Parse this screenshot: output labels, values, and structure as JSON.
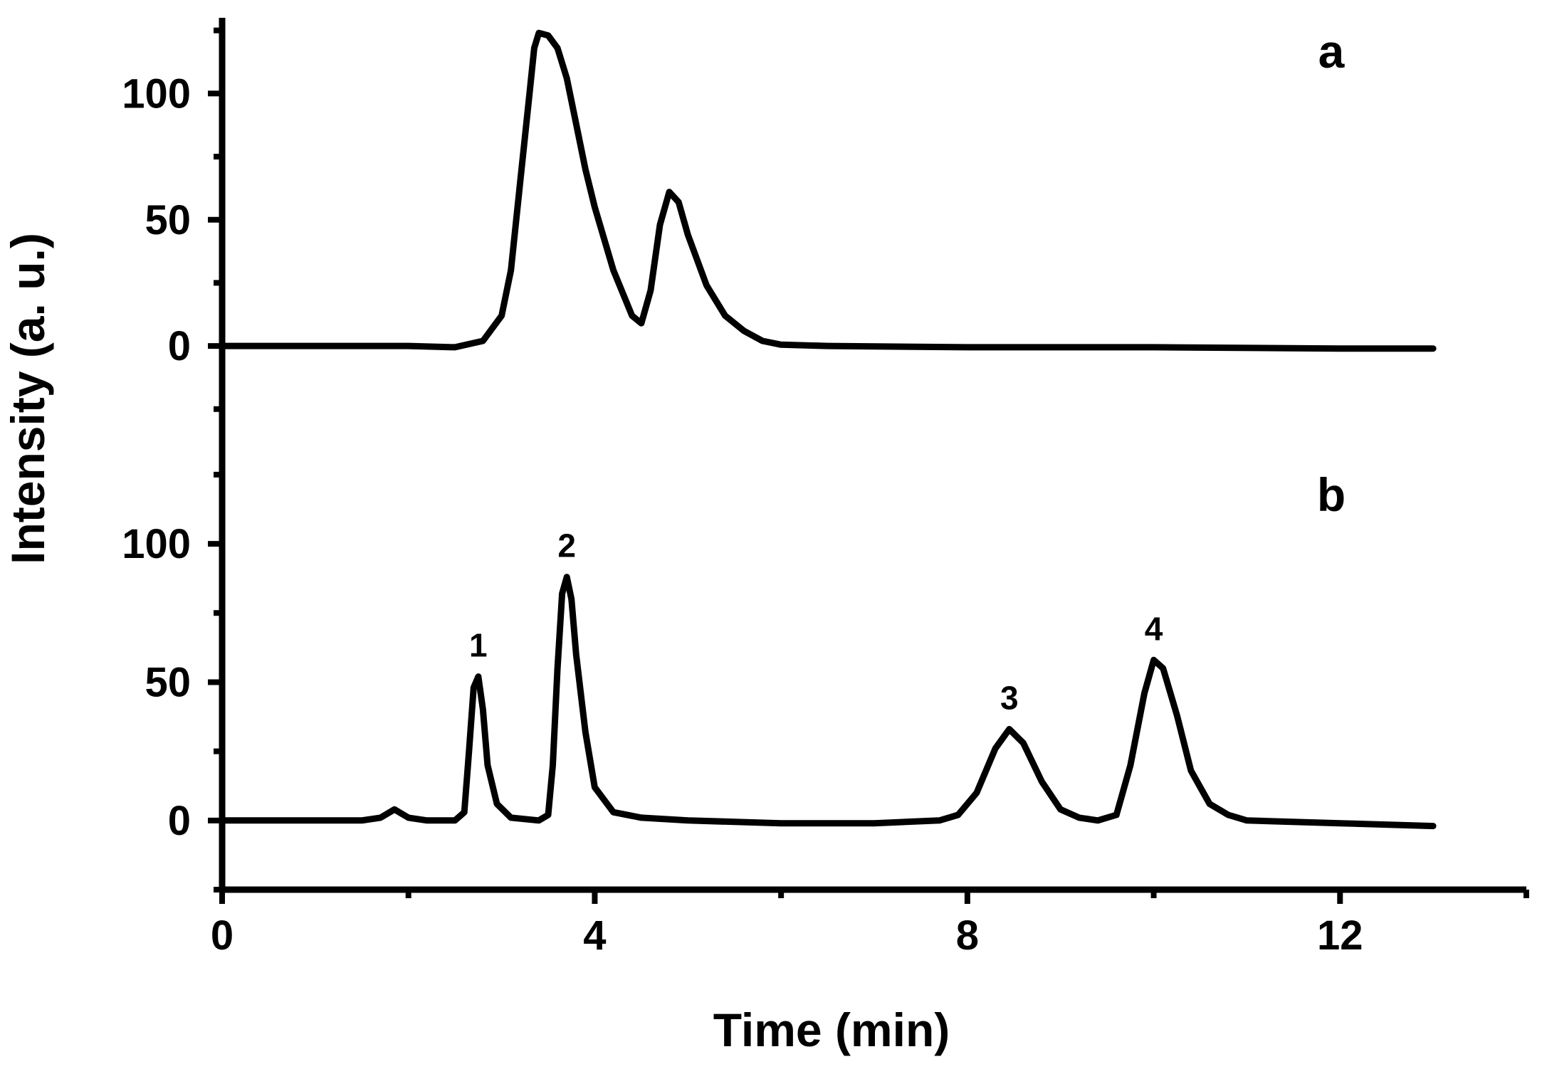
{
  "chart_data": {
    "type": "line",
    "xlabel": "Time (min)",
    "ylabel": "Intensity (a. u.)",
    "xlim": [
      0,
      14
    ],
    "x_ticks": [
      0,
      4,
      8,
      12
    ],
    "x_minor_ticks": [
      2,
      6,
      10,
      14
    ],
    "grid": false,
    "legend": "none",
    "panels": [
      {
        "label": "a",
        "ylim": [
          -40,
          130
        ],
        "y_ticks": [
          0,
          50,
          100
        ],
        "series": [
          {
            "color": "#000000",
            "points": [
              [
                0,
                0
              ],
              [
                1,
                0
              ],
              [
                2,
                0
              ],
              [
                2.5,
                -0.5
              ],
              [
                2.8,
                2
              ],
              [
                3.0,
                12
              ],
              [
                3.1,
                30
              ],
              [
                3.2,
                65
              ],
              [
                3.3,
                100
              ],
              [
                3.35,
                118
              ],
              [
                3.4,
                124
              ],
              [
                3.5,
                123
              ],
              [
                3.6,
                118
              ],
              [
                3.7,
                106
              ],
              [
                3.8,
                88
              ],
              [
                3.9,
                70
              ],
              [
                4.0,
                55
              ],
              [
                4.2,
                30
              ],
              [
                4.4,
                12
              ],
              [
                4.5,
                9
              ],
              [
                4.6,
                22
              ],
              [
                4.7,
                48
              ],
              [
                4.8,
                61
              ],
              [
                4.9,
                57
              ],
              [
                5.0,
                44
              ],
              [
                5.2,
                24
              ],
              [
                5.4,
                12
              ],
              [
                5.6,
                6
              ],
              [
                5.8,
                2
              ],
              [
                6.0,
                0.5
              ],
              [
                6.5,
                0
              ],
              [
                8,
                -0.5
              ],
              [
                10,
                -0.5
              ],
              [
                12,
                -1
              ],
              [
                13,
                -1
              ]
            ]
          }
        ]
      },
      {
        "label": "b",
        "ylim": [
          -25,
          135
        ],
        "y_ticks": [
          0,
          50,
          100
        ],
        "series": [
          {
            "color": "#000000",
            "points": [
              [
                0,
                0
              ],
              [
                0.5,
                0
              ],
              [
                1.0,
                0
              ],
              [
                1.5,
                0
              ],
              [
                1.7,
                1
              ],
              [
                1.85,
                4
              ],
              [
                2.0,
                1
              ],
              [
                2.2,
                0
              ],
              [
                2.5,
                0
              ],
              [
                2.6,
                3
              ],
              [
                2.65,
                25
              ],
              [
                2.7,
                48
              ],
              [
                2.75,
                52
              ],
              [
                2.8,
                40
              ],
              [
                2.85,
                20
              ],
              [
                2.95,
                6
              ],
              [
                3.1,
                1
              ],
              [
                3.4,
                0
              ],
              [
                3.5,
                2
              ],
              [
                3.55,
                20
              ],
              [
                3.6,
                55
              ],
              [
                3.65,
                82
              ],
              [
                3.7,
                88
              ],
              [
                3.75,
                80
              ],
              [
                3.8,
                60
              ],
              [
                3.9,
                32
              ],
              [
                4.0,
                12
              ],
              [
                4.2,
                3
              ],
              [
                4.5,
                1
              ],
              [
                5,
                0
              ],
              [
                6,
                -1
              ],
              [
                7,
                -1
              ],
              [
                7.7,
                0
              ],
              [
                7.9,
                2
              ],
              [
                8.1,
                10
              ],
              [
                8.3,
                26
              ],
              [
                8.45,
                33
              ],
              [
                8.6,
                28
              ],
              [
                8.8,
                14
              ],
              [
                9.0,
                4
              ],
              [
                9.2,
                1
              ],
              [
                9.4,
                0
              ],
              [
                9.6,
                2
              ],
              [
                9.75,
                20
              ],
              [
                9.9,
                46
              ],
              [
                10.0,
                58
              ],
              [
                10.1,
                55
              ],
              [
                10.25,
                38
              ],
              [
                10.4,
                18
              ],
              [
                10.6,
                6
              ],
              [
                10.8,
                2
              ],
              [
                11,
                0
              ],
              [
                12,
                -1
              ],
              [
                13,
                -2
              ]
            ]
          }
        ]
      }
    ],
    "annotations": [
      {
        "panel": "b",
        "text": "1",
        "x": 2.75,
        "y": 52
      },
      {
        "panel": "b",
        "text": "2",
        "x": 3.7,
        "y": 88
      },
      {
        "panel": "b",
        "text": "3",
        "x": 8.45,
        "y": 33
      },
      {
        "panel": "b",
        "text": "4",
        "x": 10.0,
        "y": 58
      }
    ]
  }
}
